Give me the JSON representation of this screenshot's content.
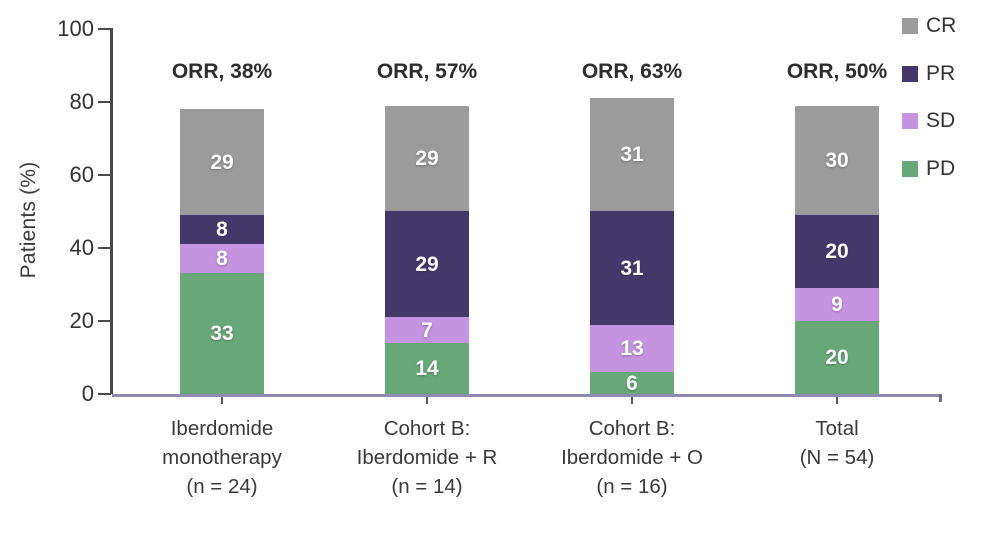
{
  "chart_data": {
    "type": "bar",
    "stacked": true,
    "title": "",
    "xlabel": "",
    "ylabel": "Patients (%)",
    "ylim": [
      0,
      100
    ],
    "yticks": [
      0,
      20,
      40,
      60,
      80,
      100
    ],
    "grid": false,
    "legend_position": "top-right",
    "legend_order": [
      "CR",
      "PR",
      "SD",
      "PD"
    ],
    "categories": [
      {
        "label_lines": [
          "Iberdomide",
          "monotherapy",
          "(n = 24)"
        ],
        "annotation": "ORR, 38%"
      },
      {
        "label_lines": [
          "Cohort B:",
          "Iberdomide + R",
          "(n = 14)"
        ],
        "annotation": "ORR, 57%"
      },
      {
        "label_lines": [
          "Cohort B:",
          "Iberdomide + O",
          "(n = 16)"
        ],
        "annotation": "ORR, 63%"
      },
      {
        "label_lines": [
          "Total",
          "(N = 54)"
        ],
        "annotation": "ORR, 50%"
      }
    ],
    "series": [
      {
        "name": "PD",
        "color": "#68a878",
        "values": [
          33,
          14,
          6,
          20
        ]
      },
      {
        "name": "SD",
        "color": "#c594e0",
        "values": [
          8,
          7,
          13,
          9
        ]
      },
      {
        "name": "PR",
        "color": "#44386b",
        "values": [
          8,
          29,
          31,
          20
        ]
      },
      {
        "name": "CR",
        "color": "#9b9b9b",
        "values": [
          29,
          29,
          31,
          30
        ]
      }
    ],
    "colors": {
      "y_axis_line": "#4a4a4a",
      "x_baseline": "#8f8bb0",
      "annotation_text": "#2d2d2d",
      "tick_text": "#333333",
      "segment_label_text": "#ffffff"
    }
  }
}
